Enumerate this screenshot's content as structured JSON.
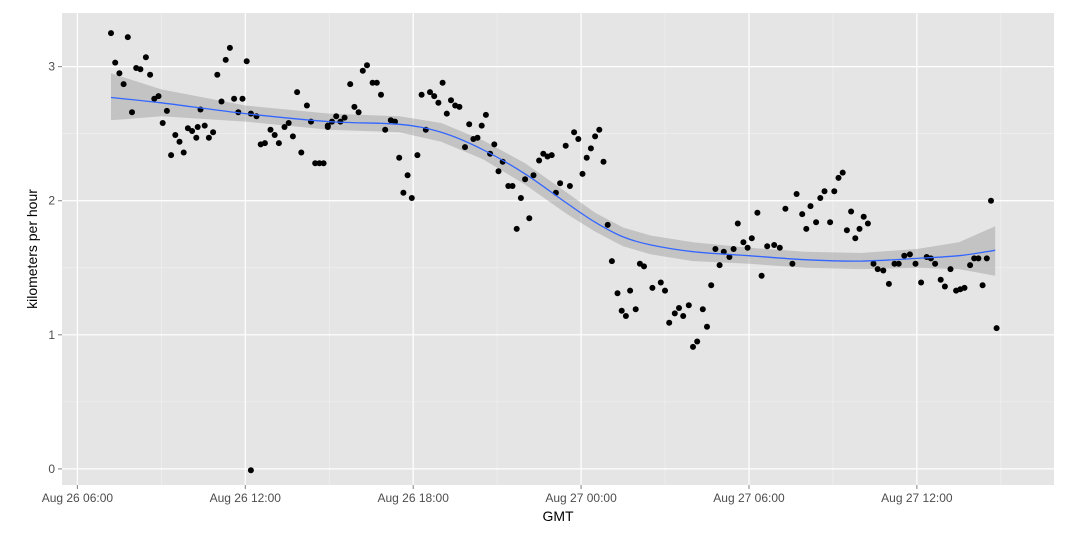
{
  "chart_data": {
    "type": "scatter",
    "title": "",
    "xlabel": "GMT",
    "ylabel": "kilometers per hour",
    "x_unit": "hours",
    "x_ticks": [
      {
        "label": "Aug 26 06:00",
        "value": 0
      },
      {
        "label": "Aug 26 12:00",
        "value": 6
      },
      {
        "label": "Aug 26 18:00",
        "value": 12
      },
      {
        "label": "Aug 27 00:00",
        "value": 18
      },
      {
        "label": "Aug 27 06:00",
        "value": 24
      },
      {
        "label": "Aug 27 12:00",
        "value": 30
      }
    ],
    "y_ticks": [
      {
        "label": "0",
        "value": 0
      },
      {
        "label": "1",
        "value": 1
      },
      {
        "label": "2",
        "value": 2
      },
      {
        "label": "3",
        "value": 3
      }
    ],
    "xlim": [
      -0.55,
      34.9
    ],
    "ylim": [
      -0.12,
      3.4
    ],
    "grid": true,
    "colors": {
      "panel": "#e5e5e5",
      "grid_major": "#ffffff",
      "grid_minor": "#f2f2f2",
      "point": "#000000",
      "smooth_line": "#3366ff",
      "band": "#999999"
    },
    "points": [
      [
        1.2,
        3.25
      ],
      [
        1.35,
        3.03
      ],
      [
        1.5,
        2.95
      ],
      [
        1.65,
        2.87
      ],
      [
        1.8,
        3.22
      ],
      [
        1.95,
        2.66
      ],
      [
        2.1,
        2.99
      ],
      [
        2.25,
        2.98
      ],
      [
        2.45,
        3.07
      ],
      [
        2.6,
        2.94
      ],
      [
        2.75,
        2.76
      ],
      [
        2.9,
        2.78
      ],
      [
        3.05,
        2.58
      ],
      [
        3.2,
        2.67
      ],
      [
        3.35,
        2.34
      ],
      [
        3.5,
        2.49
      ],
      [
        3.65,
        2.44
      ],
      [
        3.8,
        2.36
      ],
      [
        3.95,
        2.54
      ],
      [
        4.1,
        2.52
      ],
      [
        4.25,
        2.47
      ],
      [
        4.4,
        2.68
      ],
      [
        4.55,
        2.56
      ],
      [
        4.7,
        2.47
      ],
      [
        4.85,
        2.51
      ],
      [
        5.0,
        2.94
      ],
      [
        5.15,
        2.74
      ],
      [
        5.3,
        3.05
      ],
      [
        5.45,
        3.14
      ],
      [
        5.6,
        2.76
      ],
      [
        5.75,
        2.66
      ],
      [
        5.9,
        2.76
      ],
      [
        6.05,
        3.04
      ],
      [
        6.2,
        2.65
      ],
      [
        6.4,
        2.63
      ],
      [
        6.55,
        2.42
      ],
      [
        6.7,
        2.43
      ],
      [
        6.9,
        2.53
      ],
      [
        7.05,
        2.49
      ],
      [
        7.2,
        2.43
      ],
      [
        7.4,
        2.55
      ],
      [
        7.55,
        2.58
      ],
      [
        7.7,
        2.48
      ],
      [
        7.85,
        2.81
      ],
      [
        8.0,
        2.36
      ],
      [
        8.2,
        2.71
      ],
      [
        8.35,
        2.59
      ],
      [
        8.5,
        2.28
      ],
      [
        8.65,
        2.28
      ],
      [
        8.8,
        2.28
      ],
      [
        8.95,
        2.55
      ],
      [
        9.1,
        2.59
      ],
      [
        9.25,
        2.63
      ],
      [
        9.4,
        2.59
      ],
      [
        9.55,
        2.62
      ],
      [
        9.75,
        2.87
      ],
      [
        9.9,
        2.7
      ],
      [
        10.05,
        2.66
      ],
      [
        10.2,
        2.97
      ],
      [
        10.35,
        3.01
      ],
      [
        10.55,
        2.88
      ],
      [
        10.7,
        2.88
      ],
      [
        10.85,
        2.79
      ],
      [
        11.0,
        2.53
      ],
      [
        11.2,
        2.6
      ],
      [
        11.35,
        2.59
      ],
      [
        11.5,
        2.32
      ],
      [
        11.65,
        2.06
      ],
      [
        11.8,
        2.19
      ],
      [
        11.95,
        2.02
      ],
      [
        12.15,
        2.34
      ],
      [
        12.3,
        2.79
      ],
      [
        12.45,
        2.53
      ],
      [
        12.6,
        2.81
      ],
      [
        12.75,
        2.78
      ],
      [
        12.9,
        2.73
      ],
      [
        13.05,
        2.88
      ],
      [
        13.2,
        2.65
      ],
      [
        13.35,
        2.75
      ],
      [
        13.5,
        2.71
      ],
      [
        13.65,
        2.7
      ],
      [
        13.85,
        2.4
      ],
      [
        14.0,
        2.57
      ],
      [
        14.15,
        2.46
      ],
      [
        14.3,
        2.47
      ],
      [
        14.45,
        2.56
      ],
      [
        14.6,
        2.64
      ],
      [
        14.75,
        2.35
      ],
      [
        14.9,
        2.42
      ],
      [
        15.05,
        2.22
      ],
      [
        15.2,
        2.29
      ],
      [
        15.4,
        2.11
      ],
      [
        15.55,
        2.11
      ],
      [
        15.7,
        1.79
      ],
      [
        15.85,
        2.02
      ],
      [
        16.0,
        2.16
      ],
      [
        16.15,
        1.87
      ],
      [
        16.3,
        2.19
      ],
      [
        16.5,
        2.3
      ],
      [
        16.65,
        2.35
      ],
      [
        16.8,
        2.33
      ],
      [
        16.95,
        2.34
      ],
      [
        17.1,
        2.06
      ],
      [
        17.25,
        2.13
      ],
      [
        17.45,
        2.41
      ],
      [
        17.6,
        2.11
      ],
      [
        17.75,
        2.51
      ],
      [
        17.9,
        2.46
      ],
      [
        18.05,
        2.2
      ],
      [
        18.2,
        2.32
      ],
      [
        18.35,
        2.39
      ],
      [
        18.5,
        2.48
      ],
      [
        18.65,
        2.53
      ],
      [
        18.8,
        2.29
      ],
      [
        18.95,
        1.82
      ],
      [
        19.1,
        1.55
      ],
      [
        19.3,
        1.31
      ],
      [
        19.45,
        1.18
      ],
      [
        19.6,
        1.14
      ],
      [
        19.75,
        1.33
      ],
      [
        19.95,
        1.19
      ],
      [
        20.1,
        1.53
      ],
      [
        20.25,
        1.51
      ],
      [
        20.55,
        1.35
      ],
      [
        20.85,
        1.39
      ],
      [
        21.0,
        1.33
      ],
      [
        21.15,
        1.09
      ],
      [
        21.35,
        1.16
      ],
      [
        21.5,
        1.2
      ],
      [
        21.65,
        1.14
      ],
      [
        21.85,
        1.22
      ],
      [
        22.0,
        0.91
      ],
      [
        22.15,
        0.95
      ],
      [
        22.35,
        1.19
      ],
      [
        22.5,
        1.06
      ],
      [
        22.65,
        1.37
      ],
      [
        22.8,
        1.64
      ],
      [
        22.95,
        1.52
      ],
      [
        23.1,
        1.62
      ],
      [
        23.3,
        1.58
      ],
      [
        23.45,
        1.64
      ],
      [
        23.6,
        1.83
      ],
      [
        23.8,
        1.69
      ],
      [
        23.95,
        1.65
      ],
      [
        24.1,
        1.72
      ],
      [
        24.3,
        1.91
      ],
      [
        24.45,
        1.44
      ],
      [
        24.65,
        1.66
      ],
      [
        24.9,
        1.67
      ],
      [
        25.1,
        1.65
      ],
      [
        25.3,
        1.94
      ],
      [
        25.55,
        1.53
      ],
      [
        25.7,
        2.05
      ],
      [
        25.9,
        1.9
      ],
      [
        26.05,
        1.79
      ],
      [
        26.2,
        1.96
      ],
      [
        26.4,
        1.84
      ],
      [
        26.55,
        2.02
      ],
      [
        26.7,
        2.07
      ],
      [
        26.9,
        1.84
      ],
      [
        27.05,
        2.07
      ],
      [
        27.2,
        2.17
      ],
      [
        27.35,
        2.21
      ],
      [
        27.5,
        1.78
      ],
      [
        27.65,
        1.92
      ],
      [
        27.8,
        1.72
      ],
      [
        27.95,
        1.79
      ],
      [
        28.1,
        1.88
      ],
      [
        28.25,
        1.83
      ],
      [
        28.45,
        1.53
      ],
      [
        28.6,
        1.49
      ],
      [
        28.8,
        1.48
      ],
      [
        29.0,
        1.38
      ],
      [
        29.2,
        1.53
      ],
      [
        29.35,
        1.53
      ],
      [
        29.55,
        1.59
      ],
      [
        29.75,
        1.6
      ],
      [
        29.95,
        1.53
      ],
      [
        30.15,
        1.39
      ],
      [
        30.35,
        1.58
      ],
      [
        30.5,
        1.57
      ],
      [
        30.65,
        1.53
      ],
      [
        30.85,
        1.41
      ],
      [
        31.0,
        1.36
      ],
      [
        31.2,
        1.49
      ],
      [
        31.4,
        1.33
      ],
      [
        31.55,
        1.34
      ],
      [
        31.7,
        1.35
      ],
      [
        31.9,
        1.52
      ],
      [
        32.05,
        1.57
      ],
      [
        32.2,
        1.57
      ],
      [
        32.35,
        1.37
      ],
      [
        32.5,
        1.57
      ],
      [
        32.65,
        2.0
      ],
      [
        32.85,
        1.05
      ],
      [
        4.3,
        2.55
      ],
      [
        8.95,
        2.56
      ],
      [
        6.2,
        -0.01
      ]
    ],
    "smooth": {
      "x": [
        1.2,
        3.0,
        6.0,
        9.0,
        11.5,
        13.0,
        14.5,
        16.0,
        17.5,
        18.5,
        19.5,
        20.5,
        22.0,
        24.0,
        26.0,
        28.0,
        30.0,
        31.5,
        32.8
      ],
      "y": [
        2.77,
        2.73,
        2.65,
        2.59,
        2.57,
        2.51,
        2.38,
        2.2,
        1.98,
        1.84,
        1.73,
        1.67,
        1.62,
        1.59,
        1.56,
        1.55,
        1.57,
        1.59,
        1.63
      ],
      "lower": [
        2.6,
        2.63,
        2.59,
        2.53,
        2.51,
        2.44,
        2.31,
        2.12,
        1.9,
        1.77,
        1.66,
        1.6,
        1.55,
        1.53,
        1.5,
        1.49,
        1.5,
        1.49,
        1.44
      ],
      "upper": [
        2.95,
        2.83,
        2.71,
        2.65,
        2.63,
        2.58,
        2.45,
        2.28,
        2.06,
        1.91,
        1.8,
        1.74,
        1.69,
        1.65,
        1.62,
        1.61,
        1.64,
        1.69,
        1.81
      ]
    }
  }
}
